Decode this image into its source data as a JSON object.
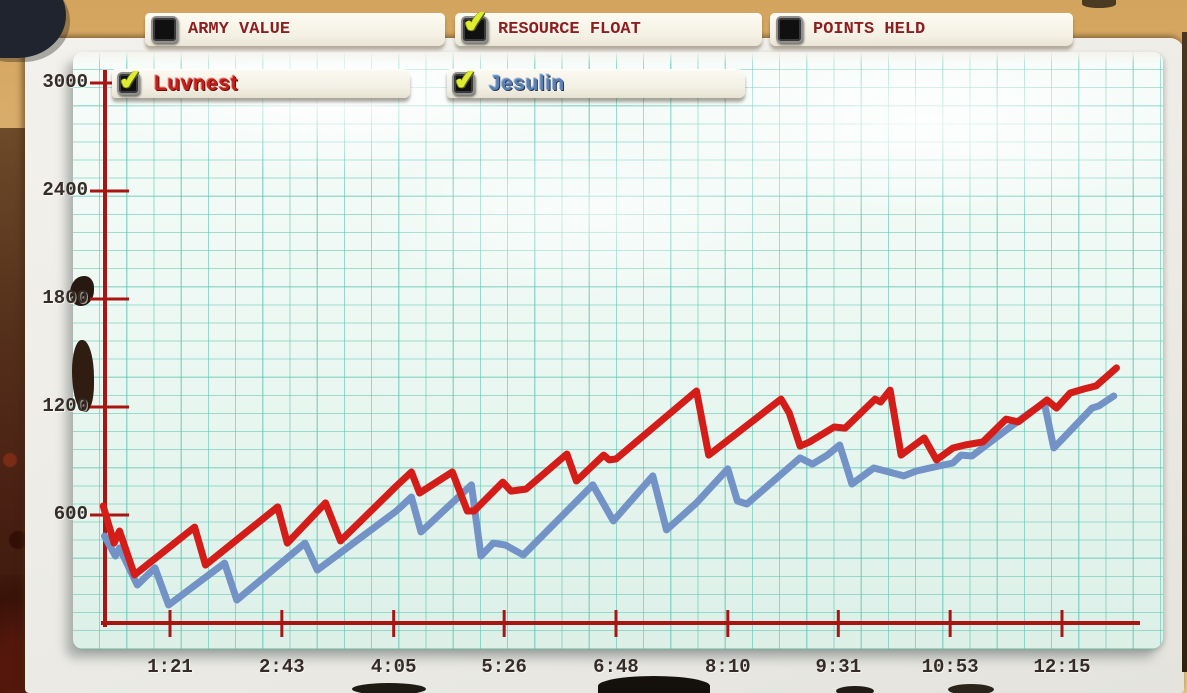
{
  "tabs": [
    {
      "label": "ARMY VALUE",
      "checked": false
    },
    {
      "label": "RESOURCE FLOAT",
      "checked": true
    },
    {
      "label": "POINTS HELD",
      "checked": false
    }
  ],
  "players": [
    {
      "name": "Luvnest",
      "checked": true,
      "color": "#d41d18"
    },
    {
      "name": "Jesulin",
      "checked": true,
      "color": "#7392c6"
    }
  ],
  "colors": {
    "axis": "#a81512",
    "luvnest_line": "#d41d18",
    "jesulin_line": "#7392c6",
    "checkmark": "#dded2f"
  },
  "chart_data": {
    "type": "line",
    "title": "RESOURCE FLOAT",
    "grid": true,
    "legend_position": "top-left",
    "x_axis": {
      "unit": "m:ss",
      "ticks": [
        {
          "label": "1:21",
          "t": 81
        },
        {
          "label": "2:43",
          "t": 163
        },
        {
          "label": "4:05",
          "t": 245
        },
        {
          "label": "5:26",
          "t": 326
        },
        {
          "label": "6:48",
          "t": 408
        },
        {
          "label": "8:10",
          "t": 490
        },
        {
          "label": "9:31",
          "t": 571
        },
        {
          "label": "10:53",
          "t": 653
        },
        {
          "label": "12:15",
          "t": 735
        }
      ]
    },
    "y_axis": {
      "min": 0,
      "max": 3000,
      "tick_values": [
        3000,
        2400,
        1800,
        1200,
        600
      ]
    },
    "series": [
      {
        "name": "Luvnest",
        "color": "#d41d18",
        "points": [
          [
            32,
            650
          ],
          [
            40,
            444
          ],
          [
            44,
            511
          ],
          [
            55,
            267
          ],
          [
            99,
            533
          ],
          [
            107,
            322
          ],
          [
            160,
            645
          ],
          [
            167,
            444
          ],
          [
            195,
            667
          ],
          [
            206,
            456
          ],
          [
            247,
            761
          ],
          [
            258,
            839
          ],
          [
            264,
            722
          ],
          [
            288,
            839
          ],
          [
            299,
            622
          ],
          [
            304,
            622
          ],
          [
            325,
            783
          ],
          [
            331,
            733
          ],
          [
            342,
            744
          ],
          [
            372,
            939
          ],
          [
            379,
            789
          ],
          [
            399,
            933
          ],
          [
            403,
            906
          ],
          [
            408,
            911
          ],
          [
            467,
            1289
          ],
          [
            476,
            933
          ],
          [
            529,
            1244
          ],
          [
            535,
            1167
          ],
          [
            543,
            983
          ],
          [
            550,
            1006
          ],
          [
            568,
            1089
          ],
          [
            576,
            1083
          ],
          [
            598,
            1244
          ],
          [
            602,
            1228
          ],
          [
            609,
            1294
          ],
          [
            617,
            933
          ],
          [
            624,
            972
          ],
          [
            634,
            1028
          ],
          [
            643,
            906
          ],
          [
            655,
            972
          ],
          [
            664,
            989
          ],
          [
            677,
            1006
          ],
          [
            694,
            1133
          ],
          [
            703,
            1117
          ],
          [
            724,
            1239
          ],
          [
            731,
            1194
          ],
          [
            741,
            1278
          ],
          [
            751,
            1300
          ],
          [
            760,
            1317
          ],
          [
            775,
            1417
          ]
        ]
      },
      {
        "name": "Jesulin",
        "color": "#7392c6",
        "points": [
          [
            33,
            483
          ],
          [
            41,
            372
          ],
          [
            44,
            417
          ],
          [
            57,
            211
          ],
          [
            70,
            306
          ],
          [
            80,
            100
          ],
          [
            121,
            333
          ],
          [
            130,
            128
          ],
          [
            180,
            444
          ],
          [
            189,
            294
          ],
          [
            247,
            622
          ],
          [
            258,
            700
          ],
          [
            265,
            506
          ],
          [
            302,
            767
          ],
          [
            309,
            372
          ],
          [
            318,
            444
          ],
          [
            327,
            433
          ],
          [
            340,
            378
          ],
          [
            391,
            767
          ],
          [
            406,
            567
          ],
          [
            435,
            817
          ],
          [
            445,
            517
          ],
          [
            467,
            667
          ],
          [
            490,
            856
          ],
          [
            497,
            678
          ],
          [
            504,
            661
          ],
          [
            543,
            917
          ],
          [
            552,
            883
          ],
          [
            563,
            933
          ],
          [
            572,
            989
          ],
          [
            581,
            772
          ],
          [
            597,
            861
          ],
          [
            619,
            817
          ],
          [
            628,
            844
          ],
          [
            638,
            861
          ],
          [
            655,
            889
          ],
          [
            661,
            933
          ],
          [
            669,
            928
          ],
          [
            696,
            1083
          ],
          [
            711,
            1167
          ],
          [
            722,
            1222
          ],
          [
            729,
            972
          ],
          [
            757,
            1194
          ],
          [
            762,
            1206
          ],
          [
            773,
            1261
          ]
        ]
      }
    ]
  }
}
